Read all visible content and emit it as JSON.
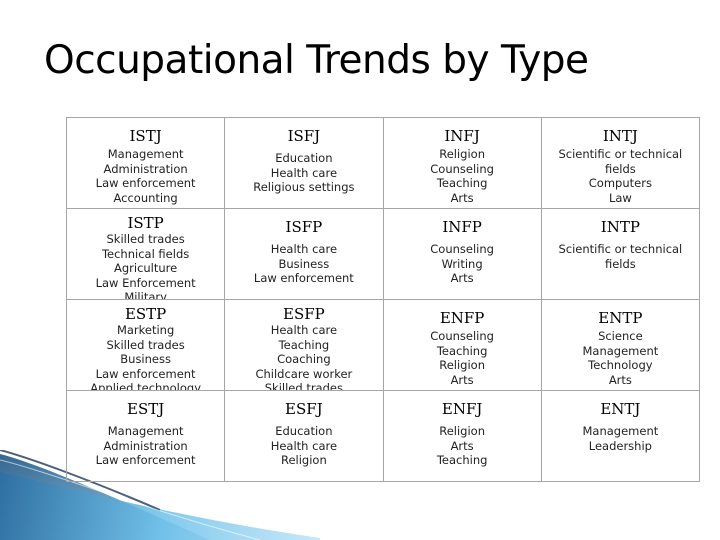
{
  "title": "Occupational Trends by Type",
  "colors": {
    "border": "#a6a6a6",
    "deco_blue": "#4aa3d8",
    "deco_dark": "#1f3a5a"
  },
  "rows": [
    [
      {
        "type": "ISTJ",
        "careers": [
          "Management",
          "Administration",
          "Law enforcement",
          "Accounting"
        ]
      },
      {
        "type": "ISFJ",
        "careers": [
          "Education",
          "Health care",
          "Religious settings"
        ]
      },
      {
        "type": "INFJ",
        "careers": [
          "Religion",
          "Counseling",
          "Teaching",
          "Arts"
        ]
      },
      {
        "type": "INTJ",
        "careers": [
          "Scientific or technical",
          "fields",
          "Computers",
          "Law"
        ]
      }
    ],
    [
      {
        "type": "ISTP",
        "careers": [
          "Skilled trades",
          "Technical fields",
          "Agriculture",
          "Law Enforcement",
          "Military"
        ]
      },
      {
        "type": "ISFP",
        "careers": [
          "Health care",
          "Business",
          "Law enforcement"
        ]
      },
      {
        "type": "INFP",
        "careers": [
          "Counseling",
          "Writing",
          "Arts"
        ]
      },
      {
        "type": "INTP",
        "careers": [
          "Scientific or technical",
          "fields"
        ]
      }
    ],
    [
      {
        "type": "ESTP",
        "careers": [
          "Marketing",
          "Skilled trades",
          "Business",
          "Law enforcement",
          "Applied technology"
        ]
      },
      {
        "type": "ESFP",
        "careers": [
          "Health care",
          "Teaching",
          "Coaching",
          "Childcare worker",
          "Skilled trades"
        ]
      },
      {
        "type": "ENFP",
        "careers": [
          "Counseling",
          "Teaching",
          "Religion",
          "Arts"
        ]
      },
      {
        "type": "ENTP",
        "careers": [
          "Science",
          "Management",
          "Technology",
          "Arts"
        ]
      }
    ],
    [
      {
        "type": "ESTJ",
        "careers": [
          "Management",
          "Administration",
          "Law enforcement"
        ]
      },
      {
        "type": "ESFJ",
        "careers": [
          "Education",
          "Health care",
          "Religion"
        ]
      },
      {
        "type": "ENFJ",
        "careers": [
          "Religion",
          "Arts",
          "Teaching"
        ]
      },
      {
        "type": "ENTJ",
        "careers": [
          "Management",
          "Leadership"
        ]
      }
    ]
  ]
}
